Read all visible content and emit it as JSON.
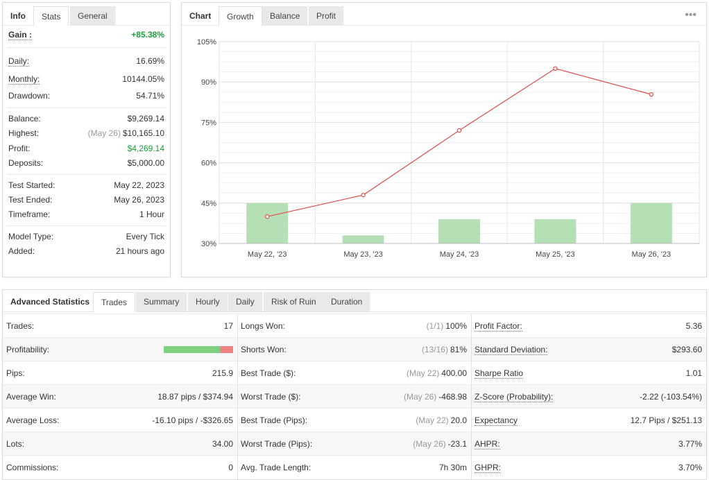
{
  "stats_panel": {
    "tabs": [
      "Info",
      "Stats",
      "General"
    ],
    "active_tab": "Stats",
    "gain": {
      "label": "Gain :",
      "value": "+85.38%"
    },
    "daily": {
      "label": "Daily:",
      "value": "16.69%"
    },
    "monthly": {
      "label": "Monthly:",
      "value": "10144.05%"
    },
    "drawdown": {
      "label": "Drawdown:",
      "value": "54.71%"
    },
    "balance": {
      "label": "Balance:",
      "value": "$9,269.14"
    },
    "highest": {
      "label": "Highest:",
      "date": "(May 26)",
      "value": "$10,165.10"
    },
    "profit": {
      "label": "Profit:",
      "value": "$4,269.14"
    },
    "deposits": {
      "label": "Deposits:",
      "value": "$5,000.00"
    },
    "test_started": {
      "label": "Test Started:",
      "value": "May 22, 2023"
    },
    "test_ended": {
      "label": "Test Ended:",
      "value": "May 26, 2023"
    },
    "timeframe": {
      "label": "Timeframe:",
      "value": "1 Hour"
    },
    "model_type": {
      "label": "Model Type:",
      "value": "Every Tick"
    },
    "added": {
      "label": "Added:",
      "value": "21 hours ago"
    },
    "colors": {
      "positive": "#1e9e3a"
    }
  },
  "chart_panel": {
    "tabs": [
      "Chart",
      "Growth",
      "Balance",
      "Profit"
    ],
    "active_tab": "Growth",
    "menu_icon": "more-dots-icon"
  },
  "chart_data": {
    "type": "bar",
    "categories": [
      "May 22, '23",
      "May 23, '23",
      "May 24, '23",
      "May 25, '23",
      "May 26, '23"
    ],
    "y_ticks": [
      "105%",
      "90%",
      "75%",
      "60%",
      "45%",
      "30%"
    ],
    "ylim": [
      30,
      105
    ],
    "series": [
      {
        "type": "bar",
        "values": [
          45,
          33,
          39,
          39,
          45
        ],
        "color": "#b5e0b5"
      },
      {
        "type": "line",
        "values": [
          40,
          48,
          72,
          95,
          85.38
        ],
        "color": "#e34a4a"
      }
    ],
    "grid": true
  },
  "advanced": {
    "title": "Advanced Statistics",
    "tabs": [
      "Trades",
      "Summary",
      "Hourly",
      "Daily",
      "Risk of Ruin",
      "Duration"
    ],
    "active_tab": "Trades",
    "col1": [
      {
        "label": "Trades:",
        "value": "17"
      },
      {
        "label": "Profitability:",
        "value": "",
        "profitability_win_fraction": 0.81
      },
      {
        "label": "Pips:",
        "value": "215.9"
      },
      {
        "label": "Average Win:",
        "value": "18.87 pips / $374.94"
      },
      {
        "label": "Average Loss:",
        "value": "-16.10 pips / -$326.65"
      },
      {
        "label": "Lots:",
        "value": "34.00"
      },
      {
        "label": "Commissions:",
        "value": "0"
      }
    ],
    "col2": [
      {
        "label": "Longs Won:",
        "pre": "(1/1)",
        "value": "100%"
      },
      {
        "label": "Shorts Won:",
        "pre": "(13/16)",
        "value": "81%"
      },
      {
        "label": "Best Trade ($):",
        "pre": "(May 22)",
        "value": "400.00"
      },
      {
        "label": "Worst Trade ($):",
        "pre": "(May 26)",
        "value": "-468.98"
      },
      {
        "label": "Best Trade (Pips):",
        "pre": "(May 22)",
        "value": "20.0"
      },
      {
        "label": "Worst Trade (Pips):",
        "pre": "(May 26)",
        "value": "-23.1"
      },
      {
        "label": "Avg. Trade Length:",
        "pre": "",
        "value": "7h 30m"
      }
    ],
    "col3": [
      {
        "label": "Profit Factor:",
        "value": "5.36"
      },
      {
        "label": "Standard Deviation:",
        "value": "$293.60"
      },
      {
        "label": "Sharpe Ratio",
        "value": "1.01"
      },
      {
        "label": "Z-Score (Probability):",
        "value": "-2.22 (-103.54%)"
      },
      {
        "label": "Expectancy",
        "value": "12.7 Pips / $251.13"
      },
      {
        "label": "AHPR:",
        "value": "3.77%"
      },
      {
        "label": "GHPR:",
        "value": "3.70%"
      }
    ]
  }
}
